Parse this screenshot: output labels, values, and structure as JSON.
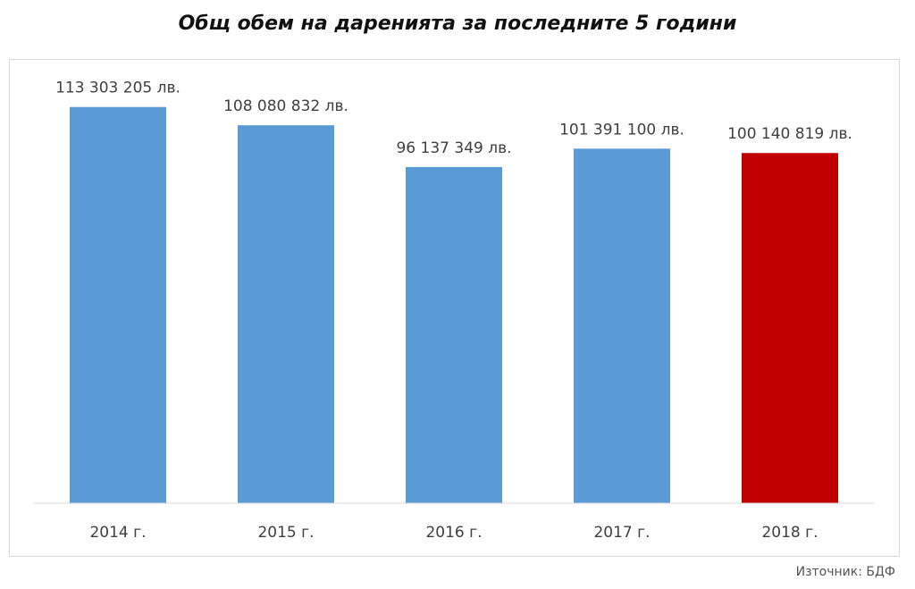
{
  "chart_data": {
    "type": "bar",
    "title": "Общ обем на даренията за последните 5 години",
    "categories": [
      "2014 г.",
      "2015 г.",
      "2016 г.",
      "2017 г.",
      "2018 г."
    ],
    "values": [
      113303205,
      108080832,
      96137349,
      101391100,
      100140819
    ],
    "data_labels": [
      "113 303 205 лв.",
      "108 080 832 лв.",
      "96 137 349 лв.",
      "101 391 100 лв.",
      "100 140 819 лв."
    ],
    "ylim": [
      0,
      114000000
    ],
    "colors": [
      "#5b9bd5",
      "#5b9bd5",
      "#5b9bd5",
      "#5b9bd5",
      "#c00000"
    ],
    "grid": false,
    "xlabel": "",
    "ylabel": ""
  },
  "source": "Източник: БДФ"
}
